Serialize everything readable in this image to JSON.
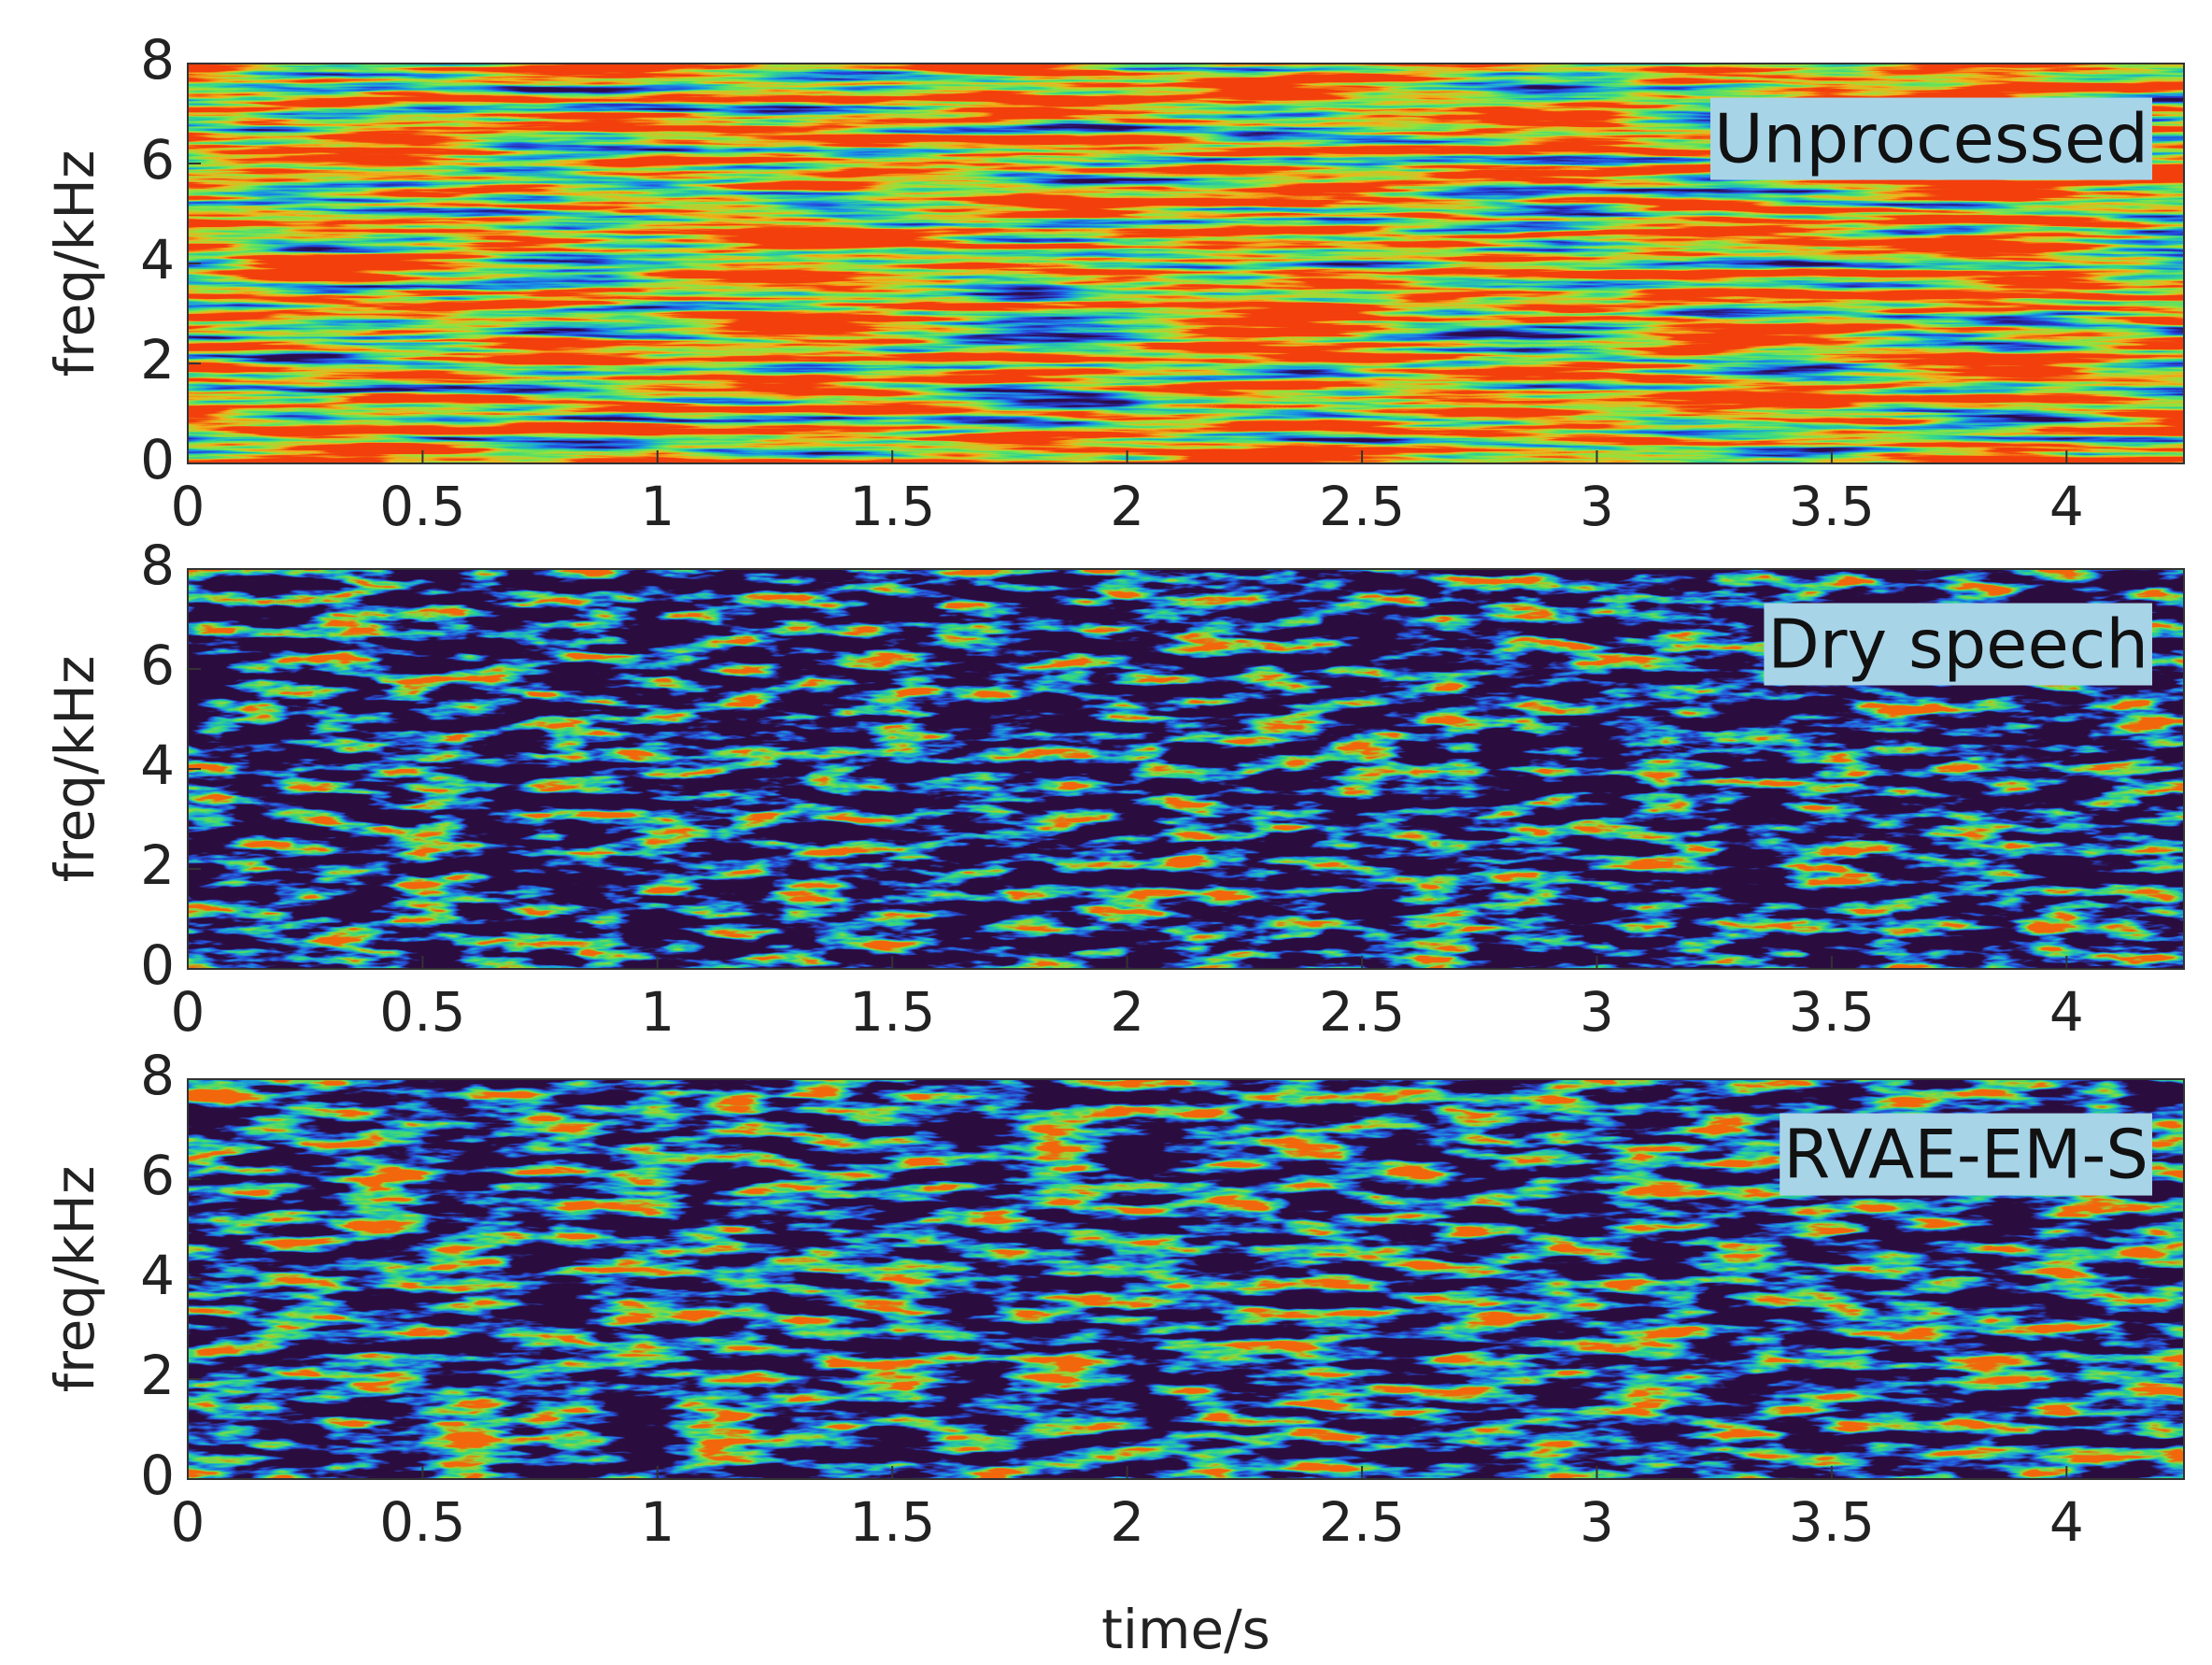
{
  "chart_data": [
    {
      "type": "spectrogram",
      "annotation": "Unprocessed",
      "ylabel": "freq/kHz",
      "xlim": [
        0,
        4.25
      ],
      "xticks": [
        0,
        0.5,
        1,
        1.5,
        2,
        2.5,
        3,
        3.5,
        4
      ],
      "ylim": [
        0,
        8
      ],
      "yticks": [
        0,
        2,
        4,
        6,
        8
      ]
    },
    {
      "type": "spectrogram",
      "annotation": "Dry speech",
      "ylabel": "freq/kHz",
      "xlim": [
        0,
        4.25
      ],
      "xticks": [
        0,
        0.5,
        1,
        1.5,
        2,
        2.5,
        3,
        3.5,
        4
      ],
      "ylim": [
        0,
        8
      ],
      "yticks": [
        0,
        2,
        4,
        6,
        8
      ]
    },
    {
      "type": "spectrogram",
      "annotation": "RVAE-EM-S",
      "ylabel": "freq/kHz",
      "xlabel": "time/s",
      "xlim": [
        0,
        4.25
      ],
      "xticks": [
        0,
        0.5,
        1,
        1.5,
        2,
        2.5,
        3,
        3.5,
        4
      ],
      "ylim": [
        0,
        8
      ],
      "yticks": [
        0,
        2,
        4,
        6,
        8
      ]
    }
  ]
}
